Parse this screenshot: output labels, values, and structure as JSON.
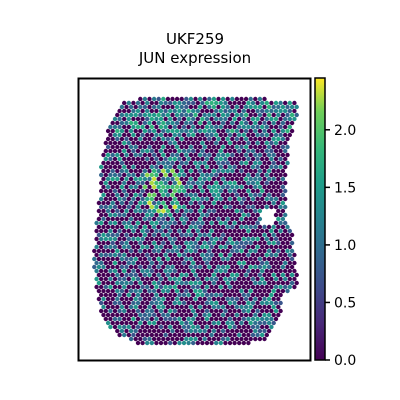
{
  "chart_data": {
    "type": "heatmap",
    "subtype": "spatial spot plot",
    "title": "UKF259",
    "subtitle": "JUN expression",
    "xlabel": "",
    "ylabel": "",
    "colormap": "viridis",
    "colorbar": {
      "range": [
        0.0,
        2.45
      ],
      "ticks": [
        0.0,
        0.5,
        1.0,
        1.5,
        2.0
      ],
      "tick_labels": [
        "0.0",
        "0.5",
        "1.0",
        "1.5",
        "2.0"
      ],
      "placement": "right"
    },
    "value_distribution": {
      "dominant_value": 0.0,
      "typical_nonzero_range": [
        0.7,
        1.6
      ],
      "max_value": 2.4,
      "high_expression_region": "upper-left center of tissue"
    }
  },
  "colors": {
    "viridis_low": "#440154",
    "viridis_mid": "#21918c",
    "viridis_high": "#fde725",
    "axes_frame": "#000000",
    "background": "#ffffff"
  }
}
